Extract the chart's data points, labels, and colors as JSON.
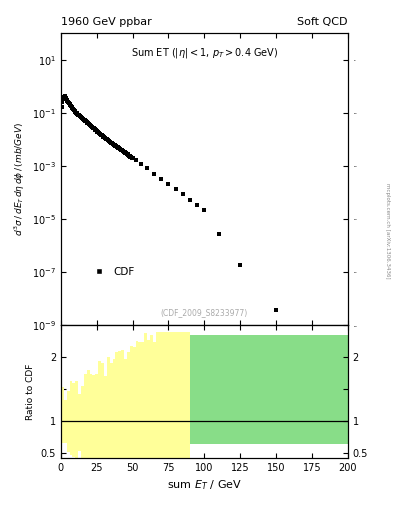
{
  "title_left": "1960 GeV ppbar",
  "title_right": "Soft QCD",
  "annotation": "Sum ET (|#eta| < 1, p_{T} > 0.4 GeV)",
  "ref_label": "(CDF_2009_S8233977)",
  "ylabel_main": "d^{3}#sigma / dE_{T} d#eta d#phi / (mb/GeV)",
  "xlabel": "sum E_{T} / GeV",
  "ylabel_ratio": "Ratio to CDF",
  "legend_label": "CDF",
  "ylim_main_log": [
    -9,
    2
  ],
  "xlim": [
    0,
    200
  ],
  "ylim_ratio": [
    0.42,
    2.5
  ],
  "ratio_yticks": [
    0.5,
    1.0,
    1.5,
    2.0
  ],
  "color_green": "#88dd88",
  "color_yellow": "#ffff99",
  "background_color": "#ffffff",
  "sidebar_text": "mcplots.cern.ch [arXiv:1306.3436]"
}
